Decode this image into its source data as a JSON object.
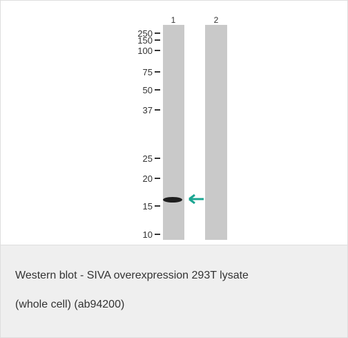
{
  "figure": {
    "lanes": [
      "1",
      "2"
    ],
    "markers": [
      "250",
      "150",
      "100",
      "75",
      "50",
      "37",
      "25",
      "20",
      "15",
      "10"
    ],
    "caption_lines": [
      "Western blot - SIVA overexpression 293T lysate",
      "(whole cell) (ab94200)"
    ]
  }
}
